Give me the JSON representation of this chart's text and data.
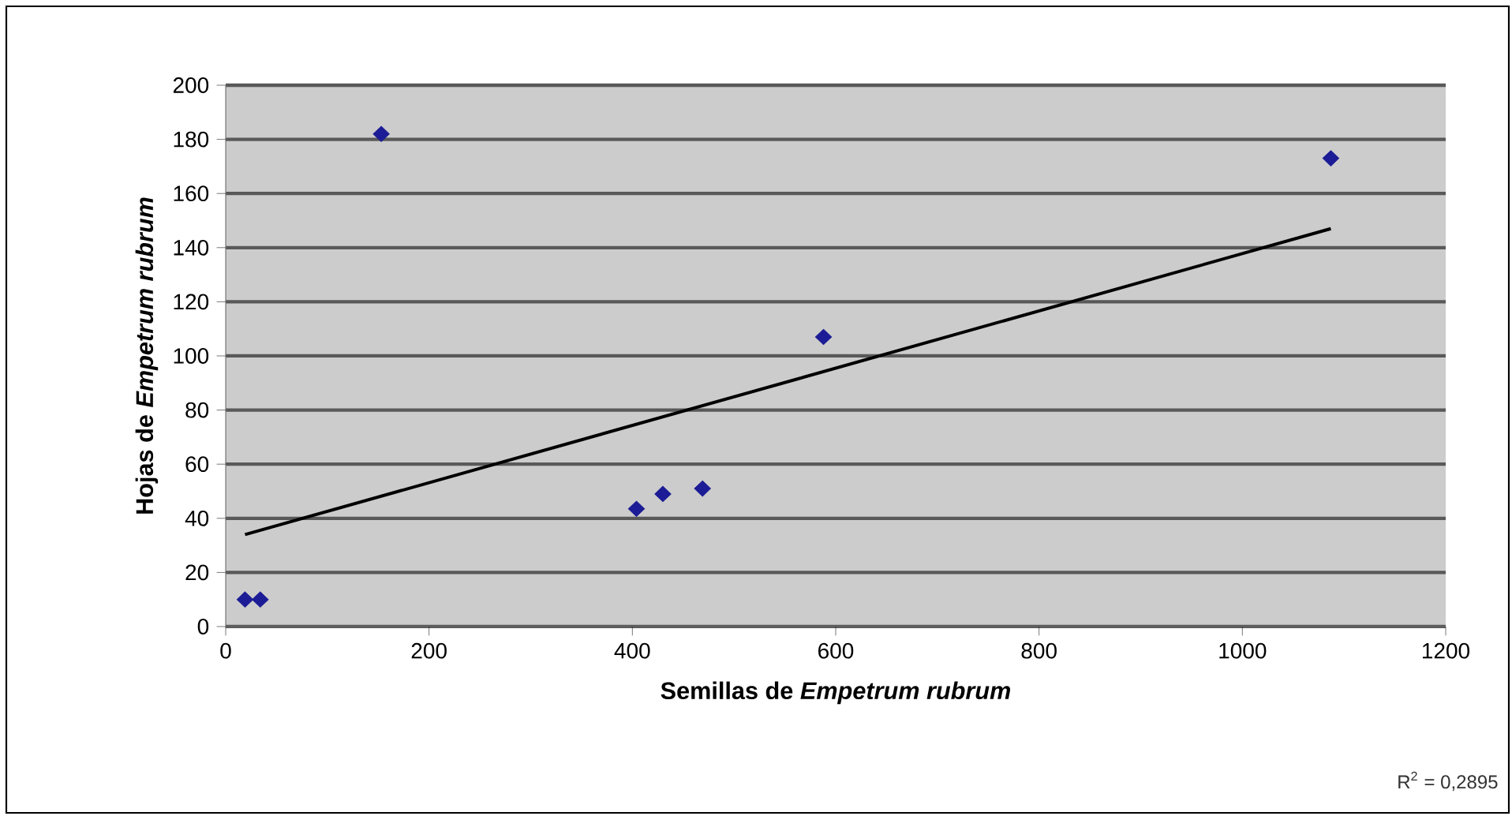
{
  "chart_data": {
    "type": "scatter",
    "xlabel": "Semillas de *Empetrum rubrum*",
    "ylabel": "Hojas de *Empetrum rubrum*",
    "annotations": [
      "R$^{2}$ = 0,2895"
    ],
    "xlim": [
      0,
      1200
    ],
    "xticks": [
      0,
      200,
      400,
      600,
      800,
      1000,
      1200
    ],
    "ylim": [
      0,
      200
    ],
    "yticks": [
      0,
      20,
      40,
      60,
      80,
      100,
      120,
      140,
      160,
      180,
      200
    ],
    "grid": "y",
    "series": [
      {
        "marker": "diamond",
        "color": "#1c1c96",
        "x": [
          19,
          34,
          153,
          404,
          430,
          469,
          588,
          1087
        ],
        "values": [
          10,
          10,
          182,
          43.5,
          49,
          51,
          107,
          173
        ]
      },
      {
        "type": "line",
        "marker": "none",
        "color": "#000000",
        "x": [
          19,
          1087
        ],
        "values": [
          34,
          147
        ]
      }
    ]
  }
}
